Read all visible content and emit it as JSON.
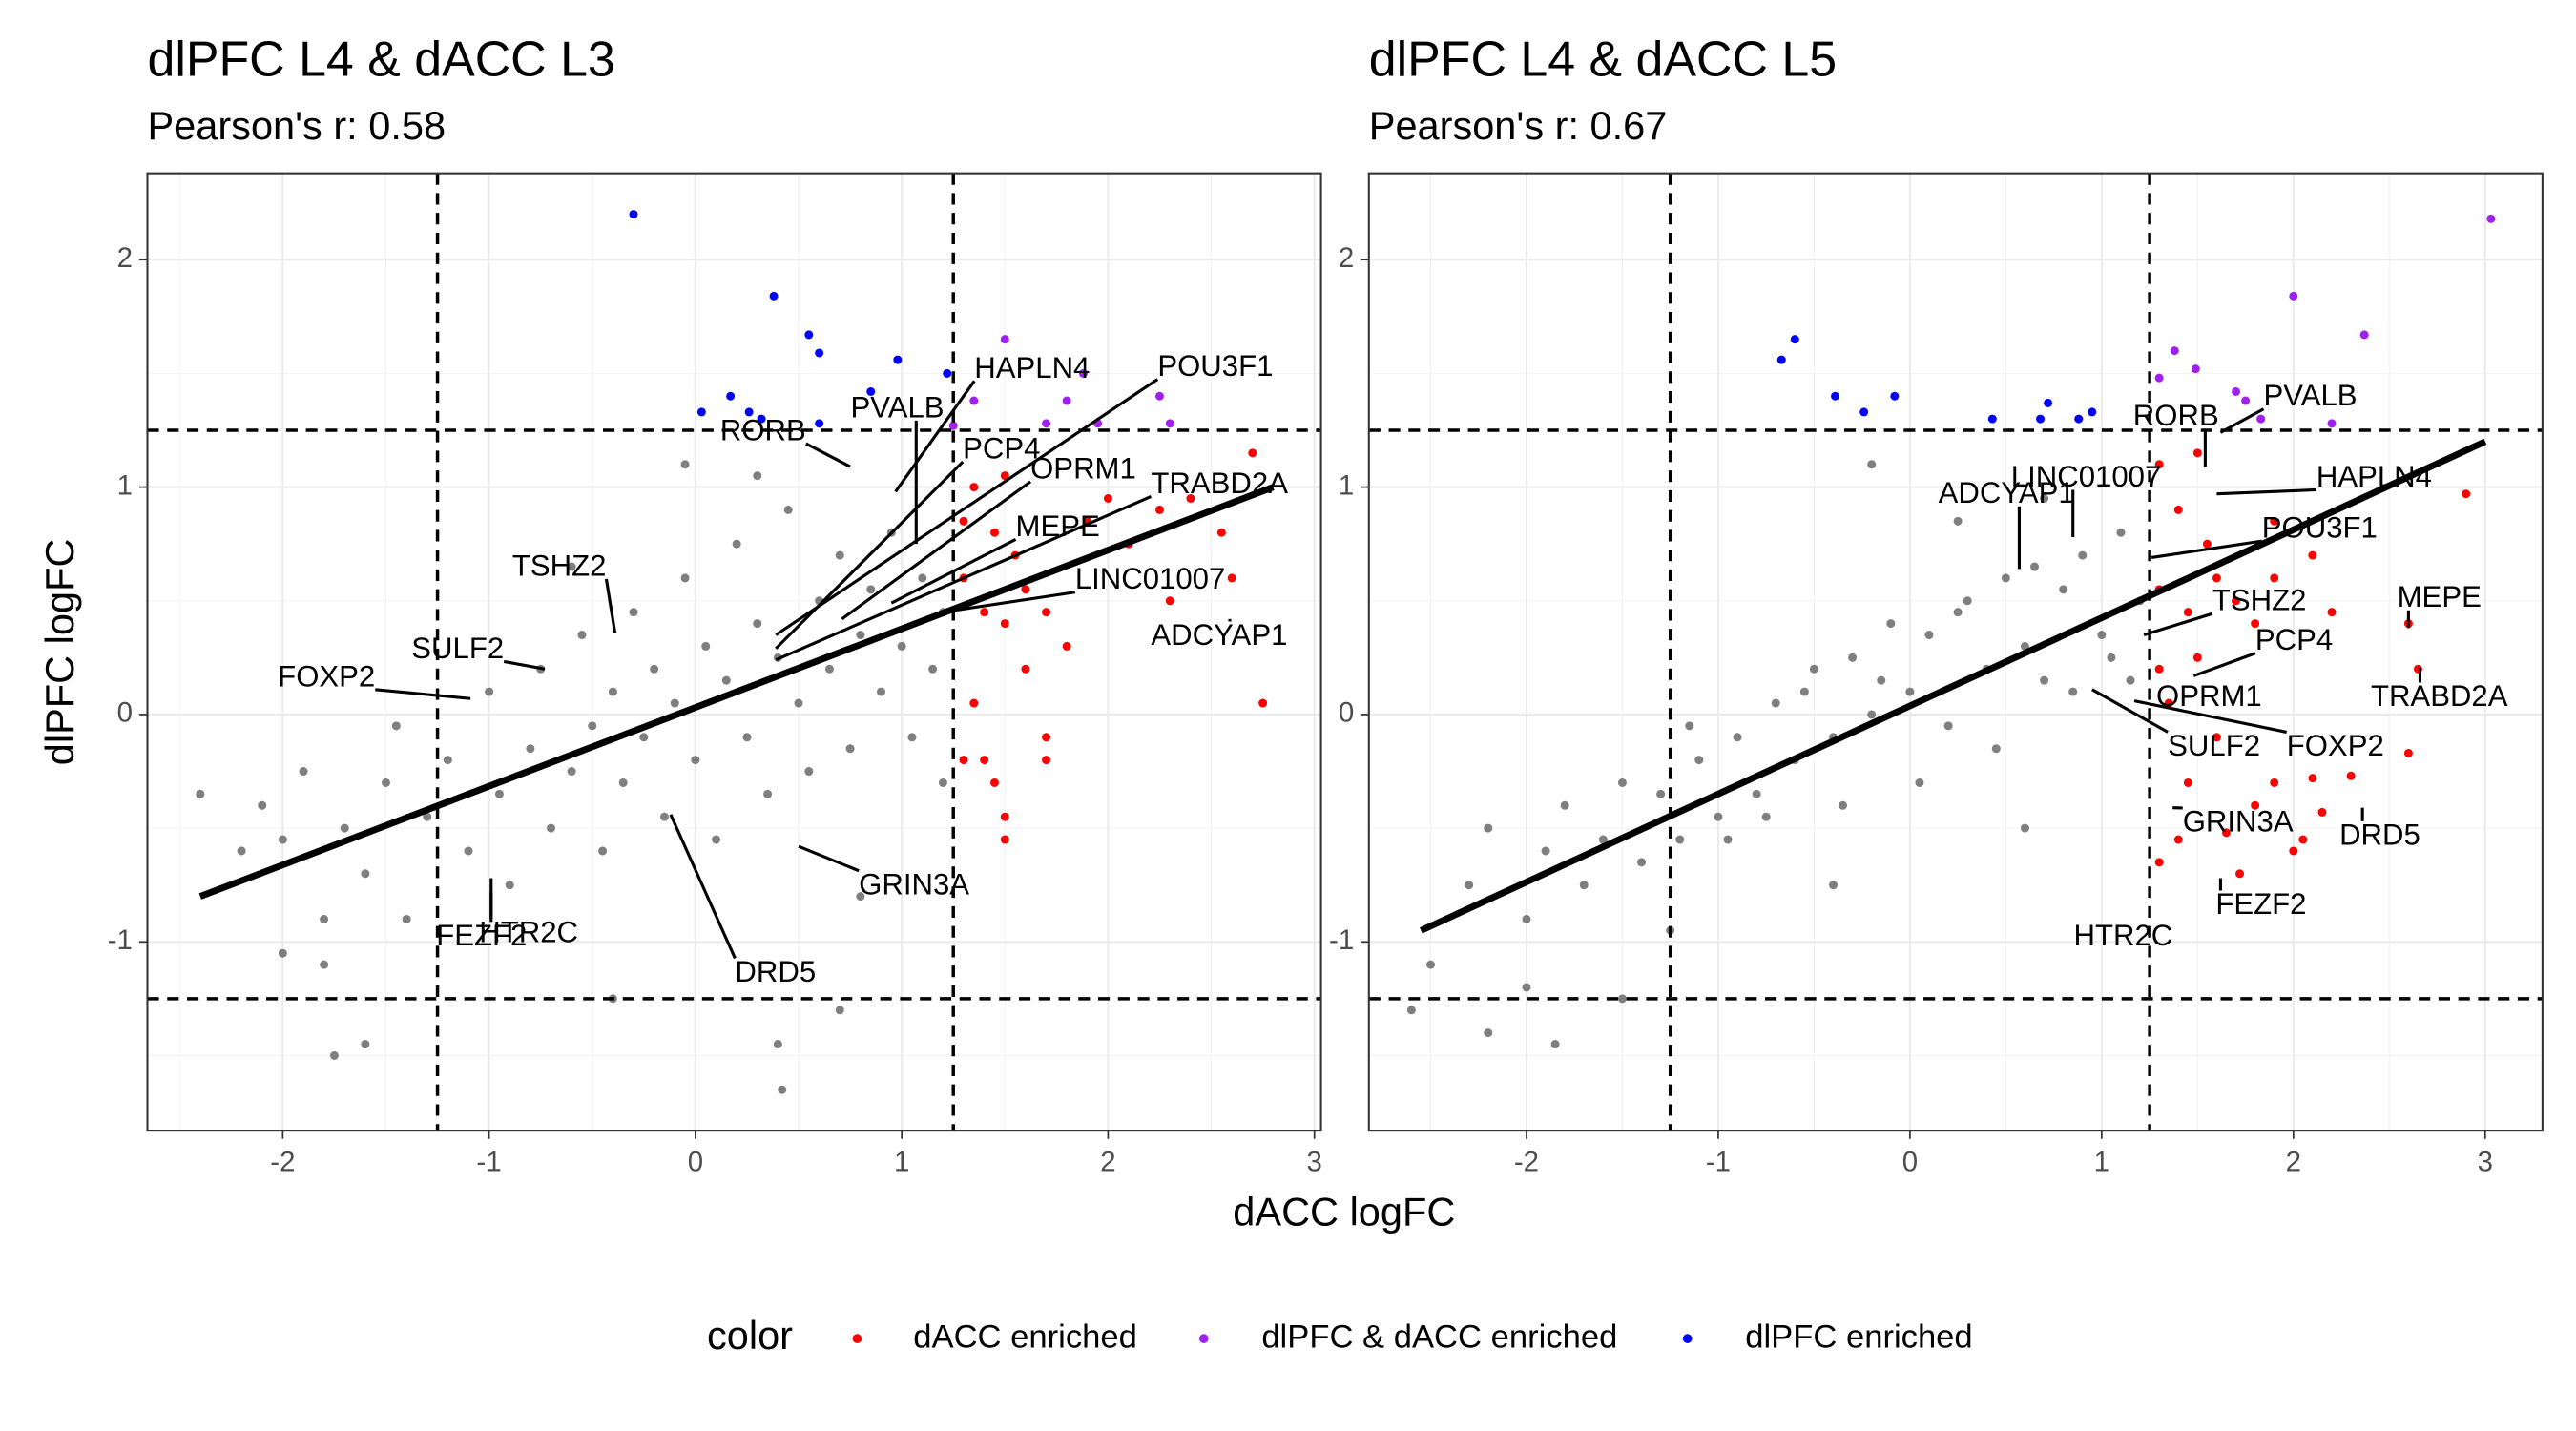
{
  "x_label": "dACC logFC",
  "y_label": "dlPFC logFC",
  "legend_title": "color",
  "chart_data": [
    {
      "type": "scatter",
      "title": "dlPFC L4 & dACC L3",
      "subtitle": "Pearson's r: 0.58",
      "xlim": [
        -2.656,
        3.032
      ],
      "ylim": [
        -1.83,
        2.38
      ],
      "xticks": [
        -2,
        -1,
        0,
        1,
        2,
        3
      ],
      "yticks": [
        -1,
        0,
        1,
        2
      ],
      "grid": true,
      "hlines": [
        -1.25,
        1.25
      ],
      "vlines": [
        -1.25,
        1.25
      ],
      "fit": {
        "x": [
          -2.4,
          2.8
        ],
        "y": [
          -0.8,
          1.0
        ]
      },
      "series": [
        {
          "color": "#7f7f7f",
          "x": [
            -2.4,
            -2.2,
            -2.1,
            -2.0,
            -1.9,
            -1.8,
            -1.7,
            -1.6,
            -1.5,
            -1.45,
            -1.4,
            -1.3,
            -1.2,
            -1.1,
            -1.0,
            -0.95,
            -0.9,
            -0.8,
            -0.75,
            -0.7,
            -0.6,
            -0.55,
            -0.5,
            -0.45,
            -0.4,
            -0.35,
            -0.3,
            -0.25,
            -0.2,
            -0.15,
            -0.1,
            -0.05,
            0,
            0.05,
            0.1,
            0.15,
            0.2,
            0.25,
            0.3,
            0.35,
            0.4,
            0.45,
            0.5,
            0.55,
            0.6,
            0.65,
            0.7,
            0.75,
            0.8,
            0.85,
            0.9,
            0.95,
            1.0,
            1.05,
            1.1,
            1.15,
            1.2,
            -0.4,
            0.4,
            0.7,
            -1.75,
            -1.6,
            0.42,
            -0.05,
            0.3,
            -0.6,
            0.8,
            -1.8,
            -2.0,
            1.2
          ],
          "y": [
            -0.35,
            -0.6,
            -0.4,
            -0.55,
            -0.25,
            -1.1,
            -0.5,
            -0.7,
            -0.3,
            -0.05,
            -0.9,
            -0.45,
            -0.2,
            -0.6,
            0.1,
            -0.35,
            -0.75,
            -0.15,
            0.2,
            -0.5,
            -0.25,
            0.35,
            -0.05,
            -0.6,
            0.1,
            -0.3,
            0.45,
            -0.1,
            0.2,
            -0.45,
            0.05,
            0.6,
            -0.2,
            0.3,
            -0.55,
            0.15,
            0.75,
            -0.1,
            0.4,
            -0.35,
            0.25,
            0.9,
            0.05,
            -0.25,
            0.5,
            0.2,
            0.7,
            -0.15,
            0.35,
            0.55,
            0.1,
            0.8,
            0.3,
            -0.1,
            0.6,
            0.2,
            0.45,
            -1.25,
            -1.45,
            -1.3,
            -1.5,
            -1.45,
            -1.65,
            1.1,
            1.05,
            0.65,
            -0.8,
            -0.9,
            -1.05,
            -0.3
          ]
        },
        {
          "name": "dACC enriched",
          "color": "#ff0000",
          "x": [
            1.3,
            1.35,
            1.45,
            1.4,
            1.5,
            1.55,
            1.6,
            1.7,
            1.8,
            1.9,
            2.0,
            2.1,
            2.25,
            2.4,
            2.55,
            2.7,
            2.75,
            2.6,
            2.3,
            1.3,
            1.4,
            1.45,
            1.5,
            1.5,
            1.7,
            1.7,
            1.35,
            1.6,
            1.5,
            1.3
          ],
          "y": [
            0.6,
            1.0,
            0.8,
            0.45,
            0.4,
            0.7,
            0.55,
            0.45,
            0.3,
            0.85,
            0.95,
            0.75,
            0.9,
            0.95,
            0.8,
            1.15,
            0.05,
            0.6,
            0.5,
            -0.2,
            -0.2,
            -0.3,
            -0.45,
            -0.55,
            -0.1,
            -0.2,
            0.05,
            0.2,
            1.05,
            0.85
          ]
        },
        {
          "name": "dlPFC & dACC enriched",
          "color": "#a020f0",
          "x": [
            1.5,
            1.35,
            1.8,
            1.88,
            2.25,
            2.3,
            1.95,
            1.7,
            1.25
          ],
          "y": [
            1.65,
            1.38,
            1.38,
            1.5,
            1.4,
            1.28,
            1.28,
            1.28,
            1.27
          ]
        },
        {
          "name": "dlPFC enriched",
          "color": "#0000ff",
          "x": [
            -0.3,
            0.38,
            0.55,
            0.6,
            0.98,
            0.85,
            1.22,
            0.17,
            0.03,
            0.26,
            0.6,
            0.32
          ],
          "y": [
            2.2,
            1.84,
            1.67,
            1.59,
            1.56,
            1.42,
            1.5,
            1.4,
            1.33,
            1.33,
            1.28,
            1.3
          ]
        }
      ],
      "annotations": [
        {
          "label": "HAPLN4",
          "x": 0.97,
          "y": 0.98
        },
        {
          "label": "POU3F1",
          "x": 0.39,
          "y": 0.35
        },
        {
          "label": "PVALB",
          "x": 1.07,
          "y": 0.75
        },
        {
          "label": "RORB",
          "x": 0.75,
          "y": 1.09
        },
        {
          "label": "PCP4",
          "x": 0.39,
          "y": 0.29
        },
        {
          "label": "OPRM1",
          "x": 0.71,
          "y": 0.42
        },
        {
          "label": "TRABD2A",
          "x": 0.39,
          "y": 0.24
        },
        {
          "label": "MEPE",
          "x": 0.95,
          "y": 0.49
        },
        {
          "label": "LINC01007",
          "x": 1.27,
          "y": 0.46
        },
        {
          "label": "ADCYAP1",
          "x": 2.59,
          "y": 0.42
        },
        {
          "label": "TSHZ2",
          "x": -0.39,
          "y": 0.36
        },
        {
          "label": "SULF2",
          "x": -0.73,
          "y": 0.2
        },
        {
          "label": "FOXP2",
          "x": -1.09,
          "y": 0.07
        },
        {
          "label": "GRIN3A",
          "x": 0.5,
          "y": -0.58
        },
        {
          "label": "DRD5",
          "x": -0.12,
          "y": -0.44
        },
        {
          "label": "FEZF2",
          "x": -0.99,
          "y": -0.72
        },
        {
          "label": "HTR2C",
          "x": -0.99,
          "y": -0.78
        }
      ]
    },
    {
      "type": "scatter",
      "title": "dlPFC L4 & dACC L5",
      "subtitle": "Pearson's r: 0.67",
      "xlim": [
        -2.822,
        3.299
      ],
      "ylim": [
        -1.83,
        2.38
      ],
      "xticks": [
        -2,
        -1,
        0,
        1,
        2,
        3
      ],
      "yticks": [
        -1,
        0,
        1,
        2
      ],
      "grid": true,
      "hlines": [
        -1.25,
        1.25
      ],
      "vlines": [
        -1.25,
        1.25
      ],
      "fit": {
        "x": [
          -2.55,
          3.0
        ],
        "y": [
          -0.95,
          1.2
        ]
      },
      "series": [
        {
          "color": "#7f7f7f",
          "x": [
            -2.5,
            -2.3,
            -2.2,
            -2.0,
            -1.9,
            -1.8,
            -1.7,
            -1.6,
            -1.5,
            -1.4,
            -1.3,
            -1.2,
            -1.1,
            -1.0,
            -0.9,
            -0.8,
            -0.7,
            -0.6,
            -0.5,
            -0.4,
            -0.3,
            -0.2,
            -0.1,
            0,
            0.1,
            0.2,
            0.3,
            0.4,
            0.5,
            0.6,
            0.7,
            0.8,
            0.9,
            1.0,
            1.1,
            1.2,
            -1.15,
            -0.95,
            -0.75,
            -0.55,
            -0.35,
            -0.15,
            0.05,
            0.25,
            0.45,
            0.65,
            0.85,
            1.05,
            -2.2,
            -2.0,
            -1.5,
            -1.25,
            0.7,
            0.25,
            -0.4,
            -0.2,
            0.6,
            1.15,
            -1.85,
            -2.6
          ],
          "y": [
            -1.1,
            -0.75,
            -0.5,
            -0.9,
            -0.6,
            -0.4,
            -0.75,
            -0.55,
            -0.3,
            -0.65,
            -0.35,
            -0.55,
            -0.2,
            -0.45,
            -0.1,
            -0.35,
            0.05,
            -0.2,
            0.2,
            -0.1,
            0.25,
            0,
            0.4,
            0.1,
            0.35,
            -0.05,
            0.5,
            0.2,
            0.6,
            0.3,
            0.15,
            0.55,
            0.7,
            0.35,
            0.8,
            0.5,
            -0.05,
            -0.55,
            -0.45,
            0.1,
            -0.4,
            0.15,
            -0.3,
            0.45,
            -0.15,
            0.65,
            0.1,
            0.25,
            -1.4,
            -1.2,
            -1.25,
            -0.95,
            0.95,
            0.85,
            -0.75,
            1.1,
            -0.5,
            0.15,
            -1.45,
            -1.3
          ]
        },
        {
          "name": "dACC enriched",
          "color": "#ff0000",
          "x": [
            1.3,
            1.4,
            1.5,
            1.55,
            1.6,
            1.7,
            1.8,
            1.9,
            2.1,
            2.2,
            2.9,
            2.6,
            2.65,
            2.6,
            2.3,
            2.1,
            2.15,
            2.05,
            2.0,
            1.9,
            1.8,
            1.65,
            1.72,
            1.4,
            1.3,
            1.45,
            1.3,
            1.35,
            1.6,
            1.9,
            1.5,
            1.45,
            1.3
          ],
          "y": [
            1.1,
            0.9,
            1.15,
            0.75,
            0.6,
            0.5,
            0.4,
            0.85,
            0.7,
            0.45,
            0.97,
            0.4,
            0.2,
            -0.17,
            -0.27,
            -0.28,
            -0.43,
            -0.55,
            -0.6,
            -0.3,
            -0.4,
            -0.52,
            -0.7,
            -0.55,
            -0.65,
            -0.3,
            0.2,
            0.05,
            -0.1,
            0.6,
            0.25,
            0.45,
            0.55
          ]
        },
        {
          "name": "dlPFC & dACC enriched",
          "color": "#a020f0",
          "x": [
            3.03,
            2.0,
            2.37,
            1.38,
            1.49,
            1.3,
            1.7,
            1.75,
            2.2,
            1.83
          ],
          "y": [
            2.18,
            1.84,
            1.67,
            1.6,
            1.52,
            1.48,
            1.42,
            1.38,
            1.28,
            1.3
          ]
        },
        {
          "name": "dlPFC enriched",
          "color": "#0000ff",
          "x": [
            -0.67,
            -0.6,
            -0.39,
            -0.24,
            -0.08,
            0.43,
            0.68,
            0.72,
            0.88,
            0.95
          ],
          "y": [
            1.56,
            1.65,
            1.4,
            1.33,
            1.4,
            1.3,
            1.3,
            1.37,
            1.3,
            1.33
          ]
        }
      ],
      "annotations": [
        {
          "label": "PVALB",
          "x": 1.62,
          "y": 1.24
        },
        {
          "label": "RORB",
          "x": 1.54,
          "y": 1.09
        },
        {
          "label": "HAPLN4",
          "x": 1.6,
          "y": 0.97
        },
        {
          "label": "ADCYAP1",
          "x": 0.57,
          "y": 0.64
        },
        {
          "label": "LINC01007",
          "x": 0.85,
          "y": 0.78
        },
        {
          "label": "POU3F1",
          "x": 1.26,
          "y": 0.69
        },
        {
          "label": "TSHZ2",
          "x": 1.22,
          "y": 0.35
        },
        {
          "label": "PCP4",
          "x": 1.48,
          "y": 0.17
        },
        {
          "label": "MEPE",
          "x": 2.6,
          "y": 0.38
        },
        {
          "label": "TRABD2A",
          "x": 2.66,
          "y": 0.21
        },
        {
          "label": "OPRM1",
          "x": 1.37,
          "y": 0.08
        },
        {
          "label": "SULF2",
          "x": 0.95,
          "y": 0.11
        },
        {
          "label": "FOXP2",
          "x": 1.17,
          "y": 0.06
        },
        {
          "label": "GRIN3A",
          "x": 1.37,
          "y": -0.41
        },
        {
          "label": "DRD5",
          "x": 2.36,
          "y": -0.41
        },
        {
          "label": "FEZF2",
          "x": 1.62,
          "y": -0.72
        },
        {
          "label": "HTR2C",
          "x": 1.25,
          "y": -0.92
        }
      ]
    }
  ]
}
